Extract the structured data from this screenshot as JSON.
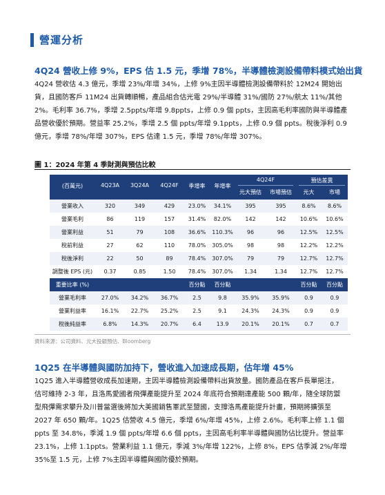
{
  "section": {
    "title": "營運分析"
  },
  "block1": {
    "heading": "4Q24 營收上修 9%，EPS 估 1.5 元，季增 78%，半導體檢測設備帶料模式始出貨",
    "lines": [
      "4Q24 營收估 4.3 億元，季增 23%/年增 34%，上修 9%主因半導體檢測設備帶料於 12M24 開始出",
      "貨，且國防客戶 11M24 出貨轉順暢，產品組合估光電 29%/半導體 31%/國防 27%/航太 11%/其他",
      "2%。毛利率 36.7%，季增 2.5ppts/年增 9.8ppts，上修 0.9 個 ppts，主因高毛利率國防與半導體產",
      "品營收優於預期。營益率 25.2%，季增 2.5 個 ppts/年增 9.1ppts，上修 0.9 個 ppts。稅後淨利 0.9",
      "億元，季增 78%/年增 307%，EPS 估達 1.5 元，季增 78%/年增 307%。"
    ]
  },
  "figure": {
    "title": "圖 1：2024 年第 4 季財測與預估比較",
    "header": {
      "unit": "(百萬元)",
      "cols": [
        "4Q23A",
        "3Q24A",
        "4Q24F",
        "季增率",
        "年增率"
      ],
      "group_4q24f": "4Q24F",
      "group_diff": "預估差異",
      "sub_4q24f": [
        "元大預估",
        "市場預估"
      ],
      "sub_diff": [
        "元大",
        "市場"
      ]
    },
    "rows": [
      {
        "label": "營業收入",
        "v": [
          "320",
          "349",
          "429",
          "23.0%",
          "34.1%",
          "395",
          "395",
          "8.6%",
          "8.6%"
        ]
      },
      {
        "label": "營業毛利",
        "v": [
          "86",
          "119",
          "157",
          "31.4%",
          "82.0%",
          "142",
          "142",
          "10.6%",
          "10.6%"
        ]
      },
      {
        "label": "營業利益",
        "v": [
          "51",
          "79",
          "108",
          "36.6%",
          "110.3%",
          "96",
          "96",
          "12.5%",
          "12.5%"
        ]
      },
      {
        "label": "稅前利益",
        "v": [
          "27",
          "62",
          "110",
          "78.0%",
          "305.0%",
          "98",
          "98",
          "12.2%",
          "12.2%"
        ]
      },
      {
        "label": "稅後淨利",
        "v": [
          "22",
          "50",
          "89",
          "78.4%",
          "307.0%",
          "79",
          "79",
          "12.7%",
          "12.7%"
        ]
      },
      {
        "label": "調整後 EPS (元)",
        "v": [
          "0.37",
          "0.85",
          "1.50",
          "78.4%",
          "307.0%",
          "1.34",
          "1.34",
          "12.7%",
          "12.7%"
        ]
      }
    ],
    "ratio_header": {
      "label": "重要比率 (%)",
      "pct_points": "百分點"
    },
    "ratio_rows": [
      {
        "label": "營業毛利率",
        "v": [
          "27.0%",
          "34.2%",
          "36.7%",
          "2.5",
          "9.8",
          "35.9%",
          "35.9%",
          "0.9",
          "0.9"
        ]
      },
      {
        "label": "營業利益率",
        "v": [
          "16.1%",
          "22.7%",
          "25.2%",
          "2.5",
          "9.1",
          "24.3%",
          "24.3%",
          "0.9",
          "0.9"
        ]
      },
      {
        "label": "稅後純益率",
        "v": [
          "6.8%",
          "14.3%",
          "20.7%",
          "6.4",
          "13.9",
          "20.1%",
          "20.1%",
          "0.7",
          "0.7"
        ]
      }
    ],
    "source": "資料來源：公司資料、元大投顧預估、Bloomberg"
  },
  "block2": {
    "heading": "1Q25 在半導體與國防加持下，營收進入加速成長期，估年增 45%",
    "lines": [
      "1Q25 進入半導體營收成長加速期，主因半導體檢測設備帶料出貨放量。國防產品在客戶長單挹注，",
      "估可維持 2-3 年，且洛馬愛國者飛彈產能提升至 2024 年底符合預期達產能 500 顆/年，隨全球防禦",
      "型飛彈需求攀升及川普當選後將加大美國銷售軍武至盟國，支撐洛馬產能提升計畫，預期將擴張至",
      "2027 年 650 顆/年。1Q25 估營收 4.5 億元，季增 6%/年增 45%，上修 2.6%。毛利率上修 1.1 個",
      "ppts 至 34.8%，季減 1.9 個 ppts/年增 6.6 個 ppts，主因高毛利率半導體與國防佔比提升。營益率",
      "23.1%，上修 1.1ppts。營業利益 1.1 億元，季減 3%/年增 122%，上修 8%，EPS 估季減 2%/年增",
      "35%至 1.5 元，上修 7%主因半導體與國防優於預期。"
    ]
  }
}
